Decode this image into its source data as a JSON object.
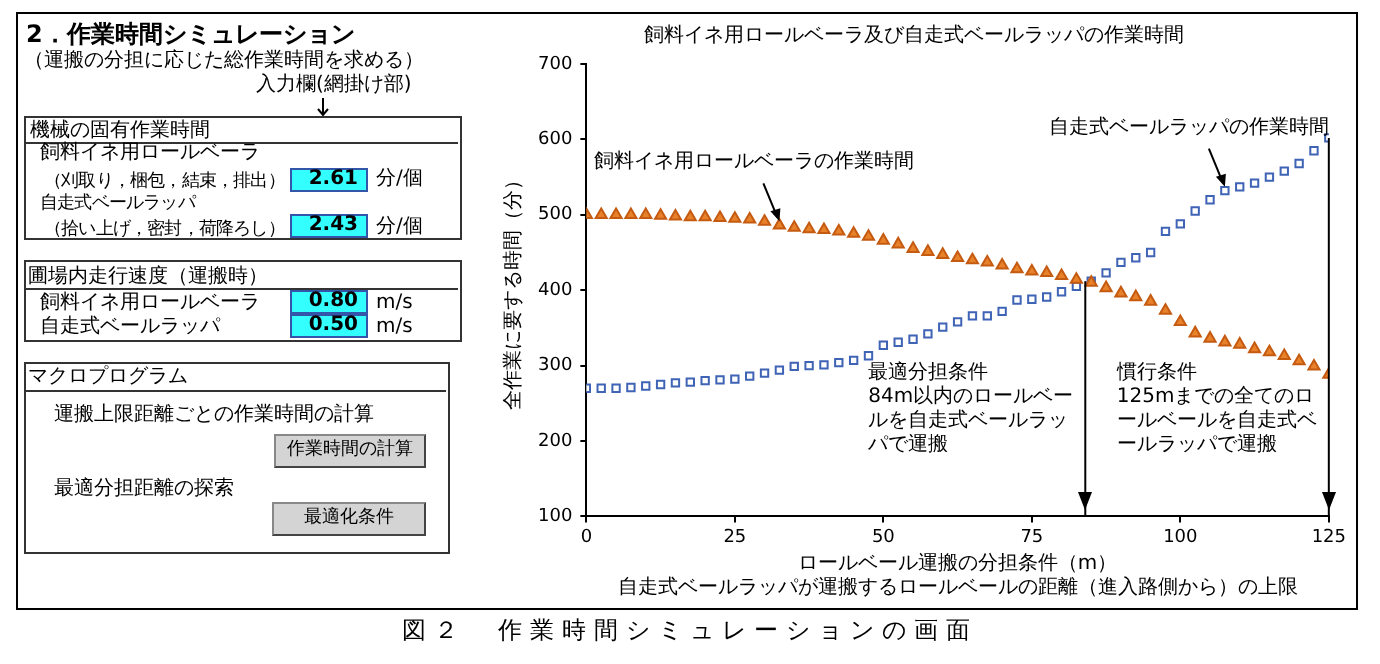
{
  "chart_data": [
    {
      "type": "other",
      "title": "2．作業時間シミュレーション",
      "subtitle": "（運搬の分担に応じた総作業時間を求める）",
      "annotations": [
        "入力欄(網掛け部)",
        "機械の固有作業時間",
        "飼料イネ用ロールベーラ",
        "（刈取り，梱包，結束，排出）",
        "2.61",
        "分/個",
        "自走式ベールラッパ",
        "（拾い上げ，密封，荷降ろし）",
        "2.43",
        "分/個",
        "圃場内走行速度（運搬時）",
        "飼料イネ用ロールベーラ",
        "0.80",
        "m/s",
        "自走式ベールラッパ",
        "0.50",
        "m/s",
        "マクロプログラム",
        "運搬上限距離ごとの作業時間の計算",
        "作業時間の計算",
        "最適分担距離の探索",
        "最適化条件",
        "図２　作業時間シミュレーションの画面"
      ]
    },
    {
      "type": "scatter",
      "title": "飼料イネ用ロールベーラ及び自走式ベールラッパの作業時間",
      "xlabel": "ロールベール運搬の分担条件（m）",
      "ylabel": "全作業に要する時間（分）",
      "x": [
        0,
        2.5,
        5,
        7.5,
        10,
        12.5,
        15,
        17.5,
        20,
        22.5,
        25,
        27.5,
        30,
        32.5,
        35,
        37.5,
        40,
        42.5,
        45,
        47.5,
        50,
        52.5,
        55,
        57.5,
        60,
        62.5,
        65,
        67.5,
        70,
        72.5,
        75,
        77.5,
        80,
        82.5,
        85,
        87.5,
        90,
        92.5,
        95,
        97.5,
        100,
        102.5,
        105,
        107.5,
        110,
        112.5,
        115,
        117.5,
        120,
        122.5,
        125
      ],
      "series": [
        {
          "color": "#3f63b5",
          "marker": "square",
          "values": [
            270,
            270,
            270,
            271,
            273,
            275,
            277,
            278,
            280,
            281,
            282,
            286,
            290,
            294,
            299,
            300,
            301,
            304,
            307,
            313,
            327,
            331,
            335,
            342,
            351,
            358,
            366,
            366,
            372,
            387,
            388,
            391,
            398,
            405,
            412,
            423,
            437,
            443,
            450,
            478,
            488,
            505,
            520,
            532,
            537,
            542,
            550,
            558,
            568,
            585,
            602
          ]
        },
        {
          "color": "#e8822a",
          "marker": "triangle",
          "values": [
            500,
            500,
            500,
            500,
            500,
            499,
            498,
            497,
            497,
            496,
            495,
            494,
            491,
            486,
            483,
            481,
            480,
            478,
            475,
            471,
            466,
            461,
            455,
            451,
            447,
            443,
            440,
            437,
            433,
            428,
            425,
            423,
            419,
            414,
            410,
            403,
            396,
            391,
            385,
            373,
            358,
            343,
            336,
            331,
            328,
            322,
            318,
            313,
            306,
            299,
            288
          ]
        }
      ],
      "xlim": [
        0,
        125
      ],
      "xticks": [
        0,
        25,
        50,
        75,
        100,
        125
      ],
      "ylim": [
        100,
        700
      ],
      "yticks": [
        100,
        200,
        300,
        400,
        500,
        600,
        700
      ],
      "grid": false,
      "legend": false,
      "annotations": [
        {
          "text": "飼料イネ用ロールベーラの作業時間",
          "x": 32.5,
          "y": 486
        },
        {
          "text": "自走式ベールラッパの作業時間",
          "x": 107.5,
          "y": 532
        },
        "自走式ベールラッパが運搬するロールベールの距離（進入路側から）の上限",
        "最適分担条件",
        "84m以内のロールベールを自走式ベールラッパで運搬",
        "慣行条件",
        "125mまでの全てのロールベールを自走式ベールラッパで運搬"
      ],
      "ref_lines": [
        {
          "axis": "x",
          "value": 84
        },
        {
          "axis": "x",
          "value": 125
        }
      ]
    }
  ]
}
